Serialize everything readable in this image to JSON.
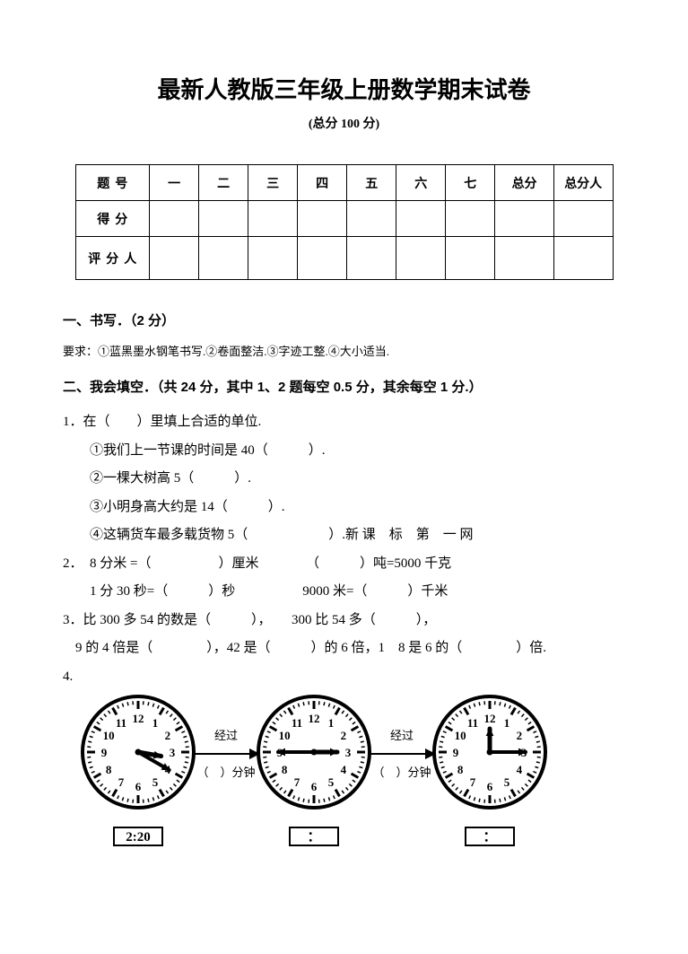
{
  "title": "最新人教版三年级上册数学期末试卷",
  "subtitle": "(总分 100 分)",
  "score_table": {
    "row1_label": "题号",
    "cols": [
      "一",
      "二",
      "三",
      "四",
      "五",
      "六",
      "七",
      "总分",
      "总分人"
    ],
    "row2_label": "得分",
    "row3_label": "评分人"
  },
  "sec1": {
    "head": "一、书写．（2 分）",
    "req": "要求：①蓝黑墨水钢笔书写.②卷面整洁.③字迹工整.④大小适当."
  },
  "sec2": {
    "head": "二、我会填空．（共 24 分，其中 1、2 题每空 0.5 分，其余每空 1 分.）",
    "q1": {
      "stem": "1．在（　　）里填上合适的单位.",
      "a": "①我们上一节课的时间是 40（　　　）.",
      "b": "②一棵大树高 5（　　　）.",
      "c": "③小明身高大约是 14（　　　）.",
      "d": "④这辆货车最多载货物 5（　　　　　　）.新 课　标　第　一 网"
    },
    "q2": {
      "a": "2．　8 分米 =（　　　　　）厘米　　　　（　　　）吨=5000 千克",
      "b": "1 分 30 秒=（　　　）秒　　　　　9000 米=（　　　）千米"
    },
    "q3": {
      "a": "3．比 300 多 54 的数是（　　　），　　300 比 54 多（　　　），",
      "b": "9 的 4 倍是（　　　　），42 是（　　　）的 6 倍，1　8 是 6 的（　　　　）倍."
    },
    "q4": {
      "label": "4.",
      "arrow_lab": "经过",
      "arrow_fill": "（　）分钟",
      "times": [
        "2:20",
        "：",
        "："
      ],
      "clocks": [
        {
          "hour_angle": 100,
          "minute_angle": 120
        },
        {
          "hour_angle": 90,
          "minute_angle": -90
        },
        {
          "hour_angle": 0,
          "minute_angle": 90
        }
      ]
    }
  },
  "style": {
    "bg": "#ffffff",
    "text": "#000000"
  }
}
